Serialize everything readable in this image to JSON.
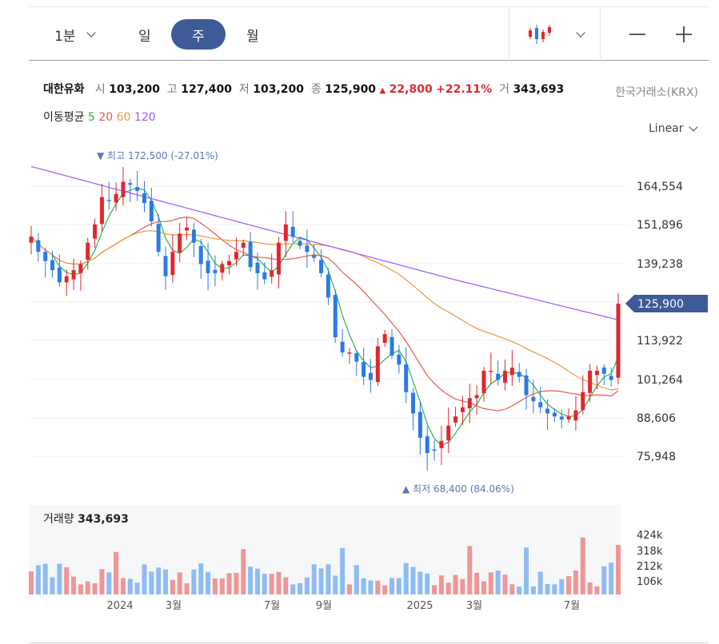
{
  "toolbar": {
    "interval_label": "1분",
    "day_label": "일",
    "week_label": "주",
    "month_label": "월"
  },
  "stock": {
    "name": "대한유화",
    "open_label": "시",
    "open": "103,200",
    "high_label": "고",
    "high": "127,400",
    "low_label": "저",
    "low": "103,200",
    "close_label": "종",
    "close": "125,900",
    "change": "22,800",
    "change_pct": "+22.11%",
    "volume_label": "거",
    "volume": "343,693",
    "exchange": "한국거래소(KRX)"
  },
  "moving_avg": {
    "label": "이동평균",
    "periods": [
      "5",
      "20",
      "60",
      "120"
    ],
    "colors": [
      "#2bb24c",
      "#f05650",
      "#f0963c",
      "#9b59f6"
    ]
  },
  "scale_mode": "Linear",
  "colors": {
    "up": "#e0272d",
    "down": "#2a7be4",
    "accent": "#3e5a99",
    "vol_up": "#ef9696",
    "vol_down": "#8ebcf2"
  },
  "chart_data": {
    "type": "candlestick",
    "price_axis_ticks": [
      "164,554",
      "151,896",
      "139,238",
      "125,900",
      "113,922",
      "101,264",
      "88,606",
      "75,948"
    ],
    "current_price": "125,900",
    "high_marker": "▼ 최고 172,500 (-27.01%)",
    "low_marker": "▲ 최저 68,400 (84.06%)",
    "x_labels": [
      "2024",
      "3월",
      "7월",
      "9월",
      "2025",
      "3월",
      "7월"
    ],
    "volume_title": "거래량",
    "volume_value": "343,693",
    "volume_ticks": [
      "424k",
      "318k",
      "212k",
      "106k"
    ],
    "weekly_close": [
      148,
      143,
      140,
      137,
      133,
      135,
      137,
      139,
      146,
      152,
      161,
      160,
      162,
      166,
      165,
      163,
      159,
      153,
      143,
      135,
      143,
      149,
      151,
      146,
      139,
      136,
      136,
      139,
      140,
      143,
      146,
      138,
      136,
      134,
      137,
      146,
      152,
      148,
      145,
      143,
      141,
      136,
      128,
      115,
      110,
      110,
      107,
      102,
      101,
      112,
      116,
      109,
      106,
      97,
      90,
      82,
      77,
      78,
      81,
      86,
      89,
      92,
      95,
      96,
      104,
      104,
      101,
      104,
      105,
      102,
      96,
      94,
      92,
      90,
      89,
      88,
      89,
      91,
      97,
      104,
      104,
      103,
      101,
      126
    ]
  }
}
